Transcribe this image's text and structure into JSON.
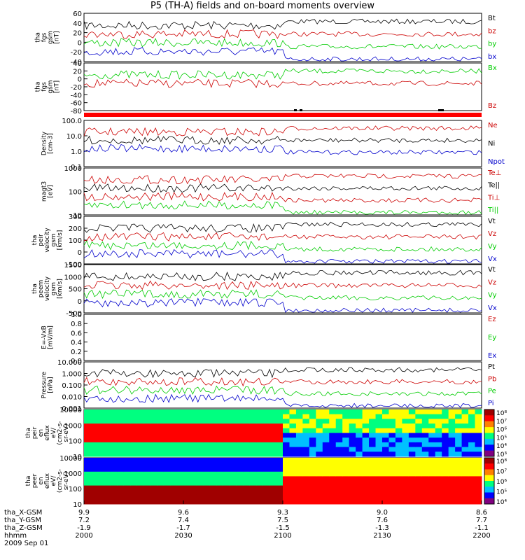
{
  "title": "P5 (TH-A) fields and on-board moments overview",
  "panels": [
    {
      "id": "fgs_gsm",
      "ylabel": [
        "tha",
        "fgs",
        "gsm",
        "[nT]"
      ],
      "scale": "linear",
      "ylim": [
        -40,
        60
      ],
      "ticks": [
        "60",
        "40",
        "20",
        "0",
        "-20",
        "-40"
      ],
      "legend": [
        {
          "label": "Bt",
          "color": "#000000"
        },
        {
          "label": "bz",
          "color": "#cc0000"
        },
        {
          "label": "by",
          "color": "#00cc00"
        },
        {
          "label": "bx",
          "color": "#0000cc"
        }
      ]
    },
    {
      "id": "fgs_gsm_angles",
      "ylabel": [
        "tha",
        "fgs",
        "gsm",
        "[nT]"
      ],
      "scale": "linear",
      "ylim": [
        -80,
        40
      ],
      "ticks": [
        "40",
        "20",
        "0",
        "-20",
        "-40",
        "-60",
        "-80"
      ],
      "legend": [
        {
          "label": "Bx",
          "color": "#00cc00"
        },
        {
          "label": "Bz",
          "color": "#cc0000"
        }
      ]
    },
    {
      "id": "density",
      "ylabel": [
        "Density",
        "[cm-3]"
      ],
      "scale": "log",
      "ylim": [
        0.1,
        100
      ],
      "ticks": [
        "100.0",
        "10.0",
        "1.0",
        "0.1"
      ],
      "legend": [
        {
          "label": "Ne",
          "color": "#cc0000"
        },
        {
          "label": "Ni",
          "color": "#000000"
        },
        {
          "label": "Npot",
          "color": "#0000cc"
        }
      ]
    },
    {
      "id": "temperature",
      "ylabel": [
        "magt3",
        "[eV]"
      ],
      "scale": "log",
      "ylim": [
        10,
        3000
      ],
      "ticks": [
        "1000",
        "100",
        "10"
      ],
      "legend": [
        {
          "label": "Te⊥",
          "color": "#cc0000"
        },
        {
          "label": "Te||",
          "color": "#000000"
        },
        {
          "label": "Ti⊥",
          "color": "#cc0000"
        },
        {
          "label": "Ti||",
          "color": "#00cc00"
        }
      ]
    },
    {
      "id": "peir_velocity",
      "ylabel": [
        "tha",
        "peir",
        "velocity",
        "gsm",
        "[km/s]"
      ],
      "scale": "linear",
      "ylim": [
        -150,
        300
      ],
      "ticks": [
        "300",
        "200",
        "100",
        "0",
        "-100"
      ],
      "legend": [
        {
          "label": "Vt",
          "color": "#000000"
        },
        {
          "label": "Vz",
          "color": "#cc0000"
        },
        {
          "label": "Vy",
          "color": "#00cc00"
        },
        {
          "label": "Vx",
          "color": "#0000cc"
        }
      ]
    },
    {
      "id": "peem_velocity",
      "ylabel": [
        "tha",
        "peem",
        "velocity",
        "gsm",
        "[km/s]"
      ],
      "scale": "linear",
      "ylim": [
        -700,
        1500
      ],
      "ticks": [
        "1500",
        "1000",
        "500",
        "0",
        "-500"
      ],
      "legend": [
        {
          "label": "Vt",
          "color": "#000000"
        },
        {
          "label": "Vz",
          "color": "#cc0000"
        },
        {
          "label": "Vy",
          "color": "#00cc00"
        },
        {
          "label": "Vx",
          "color": "#0000cc"
        }
      ]
    },
    {
      "id": "efield",
      "ylabel": [
        "E=-VxB",
        "[mV/m]"
      ],
      "scale": "linear",
      "ylim": [
        0,
        1
      ],
      "ticks": [
        "1.0",
        "0.8",
        "0.6",
        "0.4",
        "0.2",
        "0.0"
      ],
      "legend": [
        {
          "label": "Ez",
          "color": "#cc0000"
        },
        {
          "label": "Ey",
          "color": "#00cc00"
        },
        {
          "label": "Ex",
          "color": "#0000cc"
        }
      ]
    },
    {
      "id": "pressure",
      "ylabel": [
        "Pressure",
        "[nPa]"
      ],
      "scale": "log",
      "ylim": [
        0.001,
        10
      ],
      "ticks": [
        "10.000",
        "1.000",
        "0.100",
        "0.010",
        "0.001"
      ],
      "legend": [
        {
          "label": "Pt",
          "color": "#000000"
        },
        {
          "label": "Pb",
          "color": "#cc0000"
        },
        {
          "label": "Pe",
          "color": "#00cc00"
        },
        {
          "label": "Pi",
          "color": "#0000cc"
        }
      ]
    },
    {
      "id": "peir_spec",
      "ylabel": [
        "tha",
        "peir",
        "en",
        "eflux",
        "eV/",
        "(cm2-s-",
        "sr-eV)"
      ],
      "scale": "spectrogram",
      "ticks": [
        "10000",
        "1000",
        "100",
        "10"
      ],
      "colorbar": [
        "10⁸",
        "10⁷",
        "10⁶",
        "10⁵",
        "10⁴",
        "10³"
      ]
    },
    {
      "id": "peer_spec",
      "ylabel": [
        "tha",
        "peer",
        "en",
        "eflux",
        "eV/",
        "(cm2-s-",
        "sr-eV)"
      ],
      "scale": "spectrogram",
      "ticks": [
        "10000",
        "1000",
        "100",
        "10"
      ],
      "colorbar": [
        "10⁸",
        "10⁷",
        "10⁶",
        "10⁵",
        "10⁴"
      ]
    }
  ],
  "axis": {
    "row_labels": [
      "tha_X-GSM",
      "tha_Y-GSM",
      "tha_Z-GSM",
      "hhmm",
      "2009 Sep 01"
    ],
    "ticks": [
      {
        "x": "9.9",
        "y": "7.2",
        "z": "-1.9",
        "t": "2000"
      },
      {
        "x": "9.6",
        "y": "7.4",
        "z": "-1.7",
        "t": "2030"
      },
      {
        "x": "9.3",
        "y": "7.5",
        "z": "-1.5",
        "t": "2100"
      },
      {
        "x": "9.0",
        "y": "7.6",
        "z": "-1.3",
        "t": "2130"
      },
      {
        "x": "8.6",
        "y": "7.7",
        "z": "-1.1",
        "t": "2200"
      }
    ]
  },
  "chart_data": {
    "type": "line",
    "time_range": [
      "2000",
      "2200"
    ],
    "regime_change_at": "2100"
  }
}
